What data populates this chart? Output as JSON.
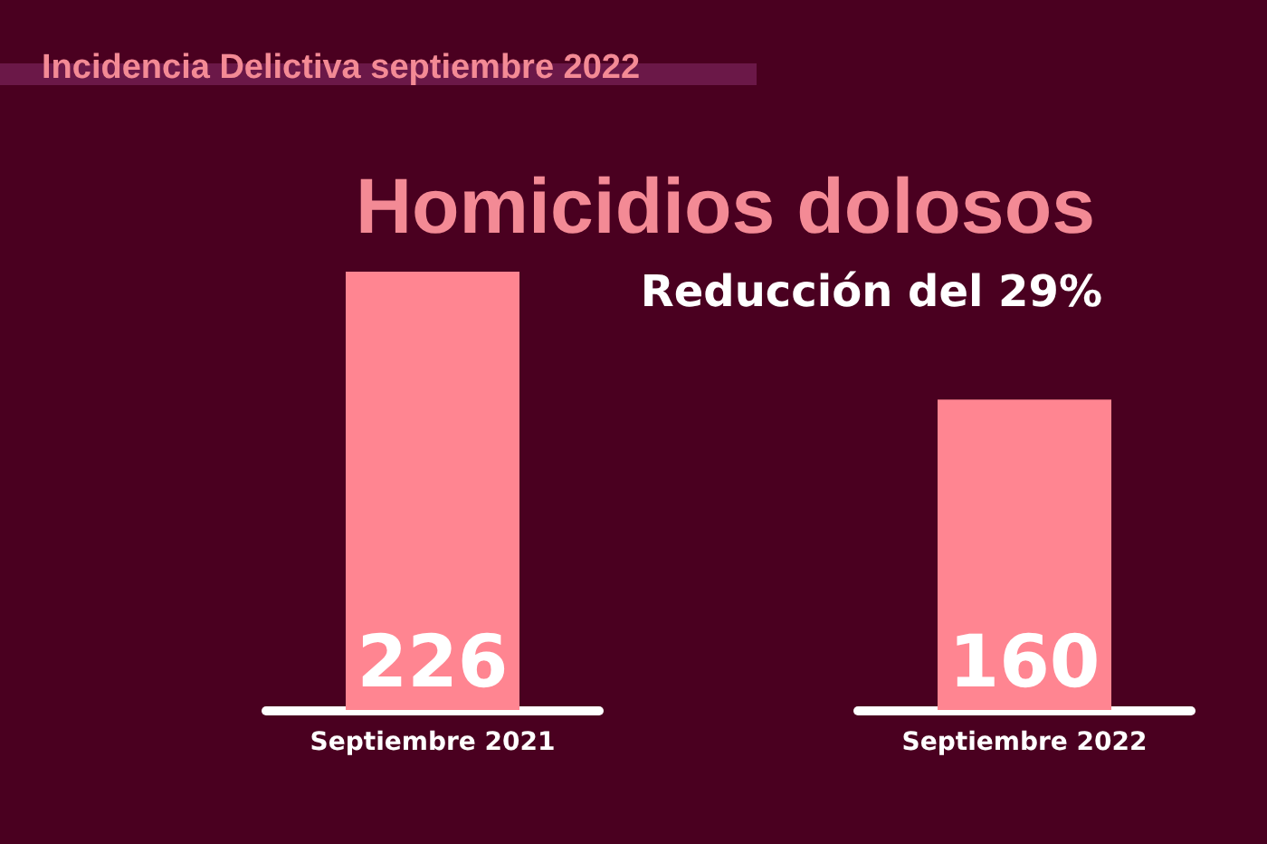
{
  "chart_data": {
    "type": "bar",
    "title": "Homicidios dolosos",
    "subtitle": "Reducción del 29%",
    "annotations": [
      "Incidencia Delictiva septiembre 2022"
    ],
    "categories": [
      "Septiembre 2021",
      "Septiembre 2022"
    ],
    "values": [
      226,
      160
    ],
    "color": "#ff8591",
    "data_labels": true
  }
}
